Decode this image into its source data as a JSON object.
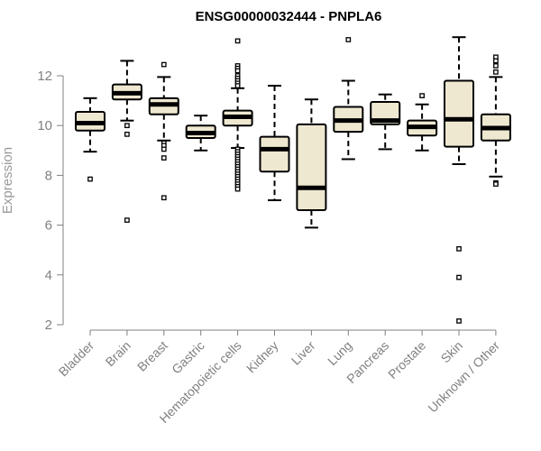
{
  "chart_data": {
    "type": "boxplot",
    "title": "ENSG00000032444 - PNPLA6",
    "xlabel": "",
    "ylabel": "Expression",
    "ylim": [
      2,
      13.6
    ],
    "yticks": [
      2,
      4,
      6,
      8,
      10,
      12
    ],
    "grid": false,
    "box_color": "#efe8d1",
    "categories": [
      "Bladder",
      "Brain",
      "Breast",
      "Gastric",
      "Hematopoietic cells",
      "Kidney",
      "Liver",
      "Lung",
      "Pancreas",
      "Prostate",
      "Skin",
      "Unknown / Other"
    ],
    "boxes": [
      {
        "name": "Bladder",
        "whisker_low": 8.95,
        "q1": 9.8,
        "median": 10.1,
        "q3": 10.55,
        "whisker_high": 11.1,
        "outliers": [
          7.85
        ]
      },
      {
        "name": "Brain",
        "whisker_low": 10.2,
        "q1": 11.05,
        "median": 11.3,
        "q3": 11.65,
        "whisker_high": 12.6,
        "outliers": [
          10.0,
          9.65,
          6.2
        ]
      },
      {
        "name": "Breast",
        "whisker_low": 9.4,
        "q1": 10.45,
        "median": 10.85,
        "q3": 11.1,
        "whisker_high": 11.95,
        "outliers": [
          12.45,
          9.3,
          9.2,
          9.05,
          8.7,
          7.1
        ]
      },
      {
        "name": "Gastric",
        "whisker_low": 9.0,
        "q1": 9.5,
        "median": 9.7,
        "q3": 10.0,
        "whisker_high": 10.4,
        "outliers": []
      },
      {
        "name": "Hematopoietic cells",
        "whisker_low": 9.1,
        "q1": 10.0,
        "median": 10.35,
        "q3": 10.6,
        "whisker_high": 11.5,
        "outliers": [
          13.4,
          12.4,
          12.3,
          12.2,
          12.0,
          11.9,
          11.8,
          11.7,
          11.6,
          9.05,
          8.95,
          8.85,
          8.75,
          8.65,
          8.55,
          8.45,
          8.35,
          8.25,
          8.15,
          8.05,
          7.95,
          7.85,
          7.75,
          7.65,
          7.55,
          7.45
        ]
      },
      {
        "name": "Kidney",
        "whisker_low": 7.0,
        "q1": 8.15,
        "median": 9.05,
        "q3": 9.55,
        "whisker_high": 11.6,
        "outliers": []
      },
      {
        "name": "Liver",
        "whisker_low": 5.9,
        "q1": 6.6,
        "median": 7.5,
        "q3": 10.05,
        "whisker_high": 11.05,
        "outliers": []
      },
      {
        "name": "Lung",
        "whisker_low": 8.65,
        "q1": 9.75,
        "median": 10.2,
        "q3": 10.75,
        "whisker_high": 11.8,
        "outliers": [
          13.45
        ]
      },
      {
        "name": "Pancreas",
        "whisker_low": 9.05,
        "q1": 10.05,
        "median": 10.2,
        "q3": 10.95,
        "whisker_high": 11.25,
        "outliers": []
      },
      {
        "name": "Prostate",
        "whisker_low": 9.0,
        "q1": 9.6,
        "median": 9.95,
        "q3": 10.2,
        "whisker_high": 10.85,
        "outliers": [
          11.2
        ]
      },
      {
        "name": "Skin",
        "whisker_low": 8.45,
        "q1": 9.15,
        "median": 10.25,
        "q3": 11.8,
        "whisker_high": 13.55,
        "outliers": [
          5.05,
          3.9,
          2.15
        ]
      },
      {
        "name": "Unknown / Other",
        "whisker_low": 7.95,
        "q1": 9.4,
        "median": 9.9,
        "q3": 10.45,
        "whisker_high": 11.95,
        "outliers": [
          12.75,
          12.6,
          12.4,
          12.15,
          7.7,
          7.65
        ]
      }
    ]
  }
}
